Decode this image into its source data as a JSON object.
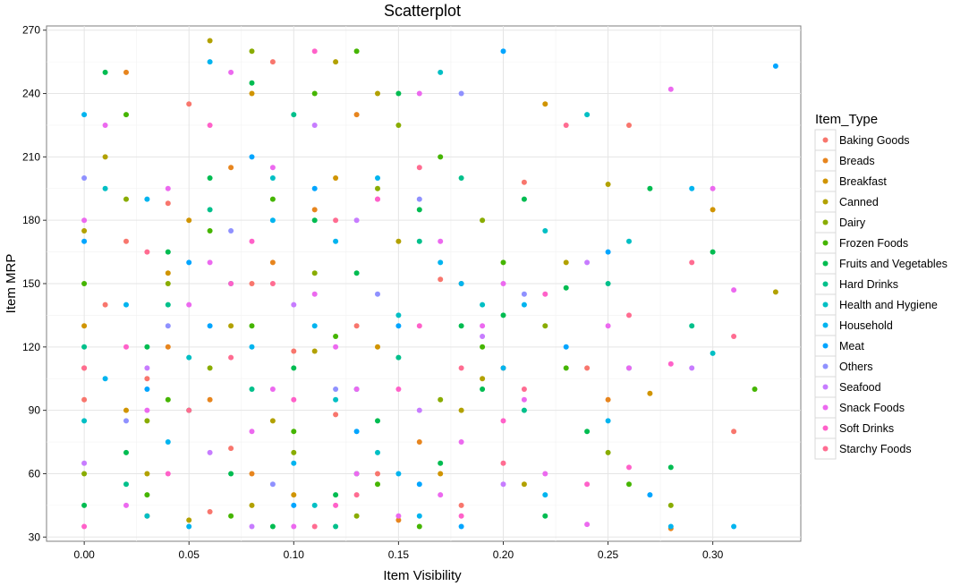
{
  "chart_data": {
    "type": "scatter",
    "title": "Scatterplot",
    "xlabel": "Item Visibility",
    "ylabel": "Item MRP",
    "xlim": [
      -0.018,
      0.342
    ],
    "ylim": [
      28,
      272
    ],
    "xticks": [
      0.0,
      0.05,
      0.1,
      0.15,
      0.2,
      0.25,
      0.3
    ],
    "xtick_labels": [
      "0.00",
      "0.05",
      "0.10",
      "0.15",
      "0.20",
      "0.25",
      "0.30"
    ],
    "yticks": [
      30,
      60,
      90,
      120,
      150,
      180,
      210,
      240,
      270
    ],
    "ytick_labels": [
      "30",
      "60",
      "90",
      "120",
      "150",
      "180",
      "210",
      "240",
      "270"
    ],
    "grid": true,
    "legend_title": "Item_Type",
    "legend_position": "right",
    "series": [
      {
        "name": "Baking Goods",
        "color": "#F8766D",
        "points": [
          [
            0.03,
            105
          ],
          [
            0.06,
            42
          ],
          [
            0.12,
            88
          ],
          [
            0.08,
            150
          ],
          [
            0.21,
            198
          ],
          [
            0.05,
            235
          ],
          [
            0.14,
            60
          ],
          [
            0.31,
            80
          ],
          [
            0.02,
            170
          ],
          [
            0.1,
            118
          ],
          [
            0.17,
            152
          ],
          [
            0.04,
            188
          ],
          [
            0.24,
            110
          ],
          [
            0.0,
            95
          ],
          [
            0.09,
            255
          ],
          [
            0.13,
            130
          ],
          [
            0.26,
            225
          ],
          [
            0.07,
            72
          ],
          [
            0.18,
            45
          ],
          [
            0.01,
            140
          ]
        ]
      },
      {
        "name": "Breads",
        "color": "#E7851E",
        "points": [
          [
            0.04,
            120
          ],
          [
            0.08,
            60
          ],
          [
            0.15,
            38
          ],
          [
            0.11,
            185
          ],
          [
            0.02,
            250
          ],
          [
            0.06,
            95
          ],
          [
            0.18,
            150
          ],
          [
            0.25,
            95
          ],
          [
            0.28,
            34
          ],
          [
            0.13,
            230
          ],
          [
            0.0,
            110
          ],
          [
            0.09,
            160
          ],
          [
            0.16,
            75
          ],
          [
            0.03,
            40
          ],
          [
            0.2,
            110
          ],
          [
            0.07,
            205
          ]
        ]
      },
      {
        "name": "Breakfast",
        "color": "#D09400",
        "points": [
          [
            0.05,
            180
          ],
          [
            0.1,
            50
          ],
          [
            0.22,
            235
          ],
          [
            0.27,
            98
          ],
          [
            0.14,
            120
          ],
          [
            0.02,
            90
          ],
          [
            0.08,
            240
          ],
          [
            0.17,
            60
          ],
          [
            0.3,
            185
          ],
          [
            0.0,
            130
          ],
          [
            0.12,
            200
          ],
          [
            0.04,
            155
          ]
        ]
      },
      {
        "name": "Canned",
        "color": "#B2A100",
        "points": [
          [
            0.03,
            60
          ],
          [
            0.07,
            130
          ],
          [
            0.12,
            255
          ],
          [
            0.19,
            105
          ],
          [
            0.33,
            146
          ],
          [
            0.25,
            197
          ],
          [
            0.01,
            210
          ],
          [
            0.09,
            85
          ],
          [
            0.15,
            170
          ],
          [
            0.05,
            38
          ],
          [
            0.11,
            118
          ],
          [
            0.21,
            55
          ],
          [
            0.0,
            175
          ],
          [
            0.14,
            240
          ],
          [
            0.18,
            90
          ],
          [
            0.06,
            265
          ],
          [
            0.23,
            160
          ],
          [
            0.08,
            45
          ]
        ]
      },
      {
        "name": "Dairy",
        "color": "#89AC00",
        "points": [
          [
            0.02,
            190
          ],
          [
            0.06,
            110
          ],
          [
            0.1,
            70
          ],
          [
            0.15,
            225
          ],
          [
            0.22,
            130
          ],
          [
            0.28,
            45
          ],
          [
            0.04,
            150
          ],
          [
            0.13,
            40
          ],
          [
            0.19,
            180
          ],
          [
            0.0,
            60
          ],
          [
            0.08,
            260
          ],
          [
            0.17,
            95
          ],
          [
            0.25,
            70
          ],
          [
            0.11,
            155
          ],
          [
            0.03,
            85
          ],
          [
            0.14,
            195
          ]
        ]
      },
      {
        "name": "Frozen Foods",
        "color": "#45B500",
        "points": [
          [
            0.04,
            95
          ],
          [
            0.09,
            190
          ],
          [
            0.14,
            55
          ],
          [
            0.2,
            160
          ],
          [
            0.07,
            40
          ],
          [
            0.12,
            125
          ],
          [
            0.17,
            210
          ],
          [
            0.23,
            110
          ],
          [
            0.02,
            230
          ],
          [
            0.0,
            150
          ],
          [
            0.1,
            80
          ],
          [
            0.16,
            35
          ],
          [
            0.26,
            55
          ],
          [
            0.06,
            175
          ],
          [
            0.13,
            260
          ],
          [
            0.19,
            120
          ],
          [
            0.32,
            100
          ],
          [
            0.08,
            130
          ],
          [
            0.03,
            50
          ],
          [
            0.11,
            240
          ]
        ]
      },
      {
        "name": "Fruits and Vegetables",
        "color": "#00BC51",
        "points": [
          [
            0.03,
            120
          ],
          [
            0.07,
            60
          ],
          [
            0.11,
            180
          ],
          [
            0.15,
            240
          ],
          [
            0.19,
            100
          ],
          [
            0.23,
            148
          ],
          [
            0.05,
            90
          ],
          [
            0.09,
            35
          ],
          [
            0.13,
            155
          ],
          [
            0.17,
            65
          ],
          [
            0.21,
            190
          ],
          [
            0.27,
            195
          ],
          [
            0.01,
            250
          ],
          [
            0.0,
            45
          ],
          [
            0.06,
            200
          ],
          [
            0.1,
            110
          ],
          [
            0.14,
            85
          ],
          [
            0.18,
            130
          ],
          [
            0.22,
            40
          ],
          [
            0.28,
            63
          ],
          [
            0.04,
            165
          ],
          [
            0.08,
            245
          ],
          [
            0.12,
            50
          ],
          [
            0.16,
            185
          ],
          [
            0.2,
            135
          ],
          [
            0.24,
            80
          ],
          [
            0.02,
            70
          ],
          [
            0.3,
            165
          ]
        ]
      },
      {
        "name": "Hard Drinks",
        "color": "#00C08B",
        "points": [
          [
            0.04,
            140
          ],
          [
            0.08,
            100
          ],
          [
            0.13,
            60
          ],
          [
            0.18,
            200
          ],
          [
            0.25,
            150
          ],
          [
            0.02,
            55
          ],
          [
            0.1,
            230
          ],
          [
            0.15,
            115
          ],
          [
            0.21,
            90
          ],
          [
            0.0,
            120
          ],
          [
            0.06,
            185
          ],
          [
            0.29,
            130
          ],
          [
            0.12,
            35
          ],
          [
            0.16,
            170
          ]
        ]
      },
      {
        "name": "Health and Hygiene",
        "color": "#00BFC4",
        "points": [
          [
            0.03,
            40
          ],
          [
            0.07,
            150
          ],
          [
            0.12,
            95
          ],
          [
            0.17,
            250
          ],
          [
            0.22,
            175
          ],
          [
            0.05,
            115
          ],
          [
            0.09,
            200
          ],
          [
            0.14,
            70
          ],
          [
            0.19,
            140
          ],
          [
            0.24,
            230
          ],
          [
            0.0,
            85
          ],
          [
            0.11,
            45
          ],
          [
            0.26,
            170
          ],
          [
            0.01,
            195
          ],
          [
            0.15,
            135
          ],
          [
            0.3,
            117
          ]
        ]
      },
      {
        "name": "Household",
        "color": "#00B4EF",
        "points": [
          [
            0.04,
            75
          ],
          [
            0.08,
            120
          ],
          [
            0.12,
            170
          ],
          [
            0.16,
            40
          ],
          [
            0.2,
            110
          ],
          [
            0.25,
            85
          ],
          [
            0.02,
            140
          ],
          [
            0.06,
            255
          ],
          [
            0.1,
            65
          ],
          [
            0.14,
            200
          ],
          [
            0.18,
            150
          ],
          [
            0.22,
            50
          ],
          [
            0.28,
            35
          ],
          [
            0.31,
            35
          ],
          [
            0.0,
            230
          ],
          [
            0.05,
            35
          ],
          [
            0.09,
            180
          ],
          [
            0.13,
            100
          ],
          [
            0.17,
            160
          ],
          [
            0.21,
            140
          ],
          [
            0.01,
            105
          ],
          [
            0.15,
            60
          ],
          [
            0.03,
            190
          ],
          [
            0.11,
            130
          ],
          [
            0.26,
            110
          ],
          [
            0.29,
            195
          ]
        ]
      },
      {
        "name": "Meat",
        "color": "#00A5FF",
        "points": [
          [
            0.05,
            160
          ],
          [
            0.1,
            45
          ],
          [
            0.15,
            130
          ],
          [
            0.2,
            260
          ],
          [
            0.25,
            165
          ],
          [
            0.03,
            100
          ],
          [
            0.08,
            210
          ],
          [
            0.13,
            80
          ],
          [
            0.18,
            35
          ],
          [
            0.23,
            120
          ],
          [
            0.0,
            170
          ],
          [
            0.11,
            195
          ],
          [
            0.16,
            55
          ],
          [
            0.33,
            253
          ],
          [
            0.27,
            50
          ],
          [
            0.06,
            130
          ]
        ]
      },
      {
        "name": "Others",
        "color": "#8F91FF",
        "points": [
          [
            0.04,
            130
          ],
          [
            0.09,
            55
          ],
          [
            0.14,
            145
          ],
          [
            0.18,
            240
          ],
          [
            0.21,
            145
          ],
          [
            0.02,
            85
          ],
          [
            0.12,
            100
          ],
          [
            0.16,
            190
          ],
          [
            0.0,
            200
          ],
          [
            0.07,
            175
          ]
        ]
      },
      {
        "name": "Seafood",
        "color": "#C77CFF",
        "points": [
          [
            0.03,
            110
          ],
          [
            0.08,
            35
          ],
          [
            0.13,
            180
          ],
          [
            0.19,
            125
          ],
          [
            0.24,
            160
          ],
          [
            0.06,
            70
          ],
          [
            0.11,
            225
          ],
          [
            0.16,
            90
          ],
          [
            0.0,
            65
          ],
          [
            0.29,
            110
          ],
          [
            0.1,
            140
          ],
          [
            0.2,
            55
          ]
        ]
      },
      {
        "name": "Snack Foods",
        "color": "#EC69EF",
        "points": [
          [
            0.02,
            45
          ],
          [
            0.05,
            140
          ],
          [
            0.09,
            100
          ],
          [
            0.13,
            60
          ],
          [
            0.17,
            170
          ],
          [
            0.21,
            95
          ],
          [
            0.26,
            110
          ],
          [
            0.04,
            195
          ],
          [
            0.08,
            80
          ],
          [
            0.12,
            120
          ],
          [
            0.16,
            240
          ],
          [
            0.2,
            150
          ],
          [
            0.3,
            195
          ],
          [
            0.01,
            225
          ],
          [
            0.06,
            160
          ],
          [
            0.1,
            35
          ],
          [
            0.14,
            190
          ],
          [
            0.18,
            75
          ],
          [
            0.22,
            60
          ],
          [
            0.28,
            242
          ],
          [
            0.03,
            90
          ],
          [
            0.07,
            250
          ],
          [
            0.11,
            145
          ],
          [
            0.15,
            40
          ],
          [
            0.19,
            130
          ],
          [
            0.0,
            180
          ],
          [
            0.09,
            205
          ],
          [
            0.13,
            100
          ],
          [
            0.17,
            50
          ],
          [
            0.25,
            130
          ],
          [
            0.31,
            147
          ],
          [
            0.24,
            36
          ]
        ]
      },
      {
        "name": "Soft Drinks",
        "color": "#FF61C9",
        "points": [
          [
            0.04,
            60
          ],
          [
            0.08,
            170
          ],
          [
            0.12,
            45
          ],
          [
            0.16,
            130
          ],
          [
            0.2,
            85
          ],
          [
            0.28,
            112
          ],
          [
            0.02,
            120
          ],
          [
            0.06,
            225
          ],
          [
            0.1,
            95
          ],
          [
            0.14,
            190
          ],
          [
            0.18,
            40
          ],
          [
            0.24,
            55
          ],
          [
            0.0,
            35
          ],
          [
            0.07,
            150
          ],
          [
            0.11,
            260
          ],
          [
            0.15,
            100
          ],
          [
            0.22,
            145
          ],
          [
            0.26,
            63
          ]
        ]
      },
      {
        "name": "Starchy Foods",
        "color": "#FF6C91",
        "points": [
          [
            0.05,
            90
          ],
          [
            0.09,
            150
          ],
          [
            0.13,
            50
          ],
          [
            0.18,
            110
          ],
          [
            0.23,
            225
          ],
          [
            0.29,
            160
          ],
          [
            0.03,
            165
          ],
          [
            0.07,
            115
          ],
          [
            0.11,
            35
          ],
          [
            0.16,
            205
          ],
          [
            0.21,
            100
          ],
          [
            0.26,
            135
          ],
          [
            0.0,
            110
          ],
          [
            0.12,
            180
          ],
          [
            0.2,
            65
          ],
          [
            0.31,
            125
          ]
        ]
      }
    ]
  }
}
